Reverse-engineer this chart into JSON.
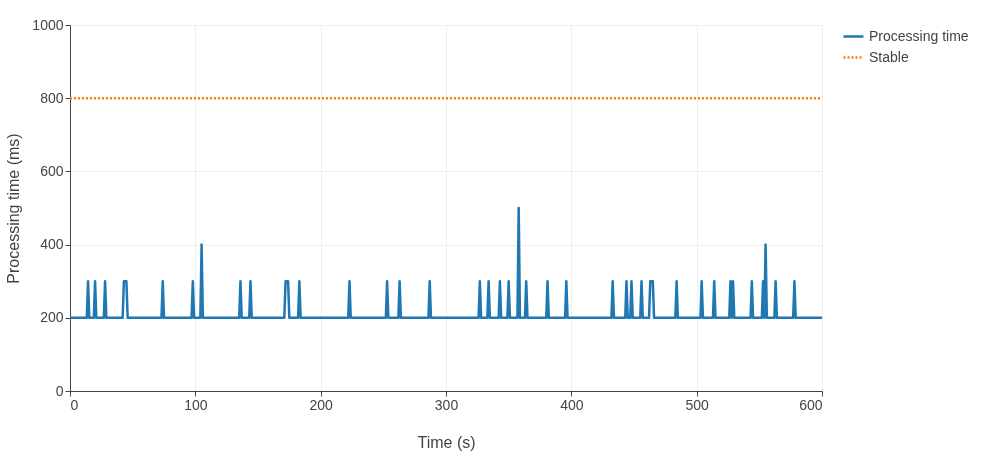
{
  "chart_data": {
    "type": "line",
    "xlabel": "Time (s)",
    "ylabel": "Processing time (ms)",
    "xlim": [
      0,
      600
    ],
    "xticks": [
      0,
      100,
      200,
      300,
      400,
      500,
      600
    ],
    "ylim": [
      0,
      1000
    ],
    "yticks": [
      0,
      200,
      400,
      600,
      800,
      1000
    ],
    "grid": true,
    "legend": "top right",
    "marker": "none",
    "series": [
      {
        "name": "Processing time",
        "color": "#1f77b4",
        "line_style": "solid",
        "x": [
          0,
          13.4,
          14.4,
          15.4,
          19,
          20,
          21,
          27,
          28,
          29,
          42,
          43,
          44,
          45,
          46,
          73,
          74,
          75,
          97,
          98,
          99,
          104,
          105,
          106,
          135,
          136,
          137,
          143,
          144,
          145,
          171,
          172,
          173,
          174,
          175,
          182,
          183,
          184,
          222,
          223,
          224,
          252,
          253,
          254,
          262,
          263,
          264,
          286,
          287,
          288,
          326,
          327,
          328,
          333,
          334,
          335,
          342,
          343,
          344,
          349,
          350,
          351,
          357,
          358,
          359,
          363,
          364,
          365,
          380,
          381,
          382,
          395,
          396,
          397,
          432,
          433,
          434,
          443,
          444,
          445,
          447,
          448,
          449,
          455,
          456,
          457,
          462,
          463,
          464,
          465,
          466,
          483,
          484,
          485,
          503,
          504,
          505,
          513,
          514,
          515,
          526,
          527,
          528,
          529,
          530,
          543,
          544,
          545,
          552,
          553,
          554,
          555,
          556,
          562,
          563,
          564,
          577,
          578,
          579,
          600
        ],
        "values": [
          200,
          200,
          300,
          200,
          200,
          300,
          200,
          200,
          300,
          200,
          200,
          300,
          300,
          300,
          200,
          200,
          300,
          200,
          200,
          300,
          200,
          200,
          400,
          200,
          200,
          300,
          200,
          200,
          300,
          200,
          200,
          300,
          300,
          300,
          200,
          200,
          300,
          200,
          200,
          300,
          200,
          200,
          300,
          200,
          200,
          300,
          200,
          200,
          300,
          200,
          200,
          300,
          200,
          200,
          300,
          200,
          200,
          300,
          200,
          200,
          300,
          200,
          200,
          500,
          200,
          200,
          300,
          200,
          200,
          300,
          200,
          200,
          300,
          200,
          200,
          300,
          200,
          200,
          300,
          200,
          200,
          300,
          200,
          200,
          300,
          200,
          200,
          300,
          300,
          300,
          200,
          200,
          300,
          200,
          200,
          300,
          200,
          200,
          300,
          200,
          200,
          300,
          200,
          300,
          200,
          200,
          300,
          200,
          200,
          300,
          200,
          400,
          200,
          200,
          300,
          200,
          200,
          300,
          200,
          200
        ]
      },
      {
        "name": "Stable",
        "color": "#ff7f0e",
        "line_style": "dotted",
        "x": [
          0,
          600
        ],
        "values": [
          800,
          800
        ]
      }
    ]
  }
}
